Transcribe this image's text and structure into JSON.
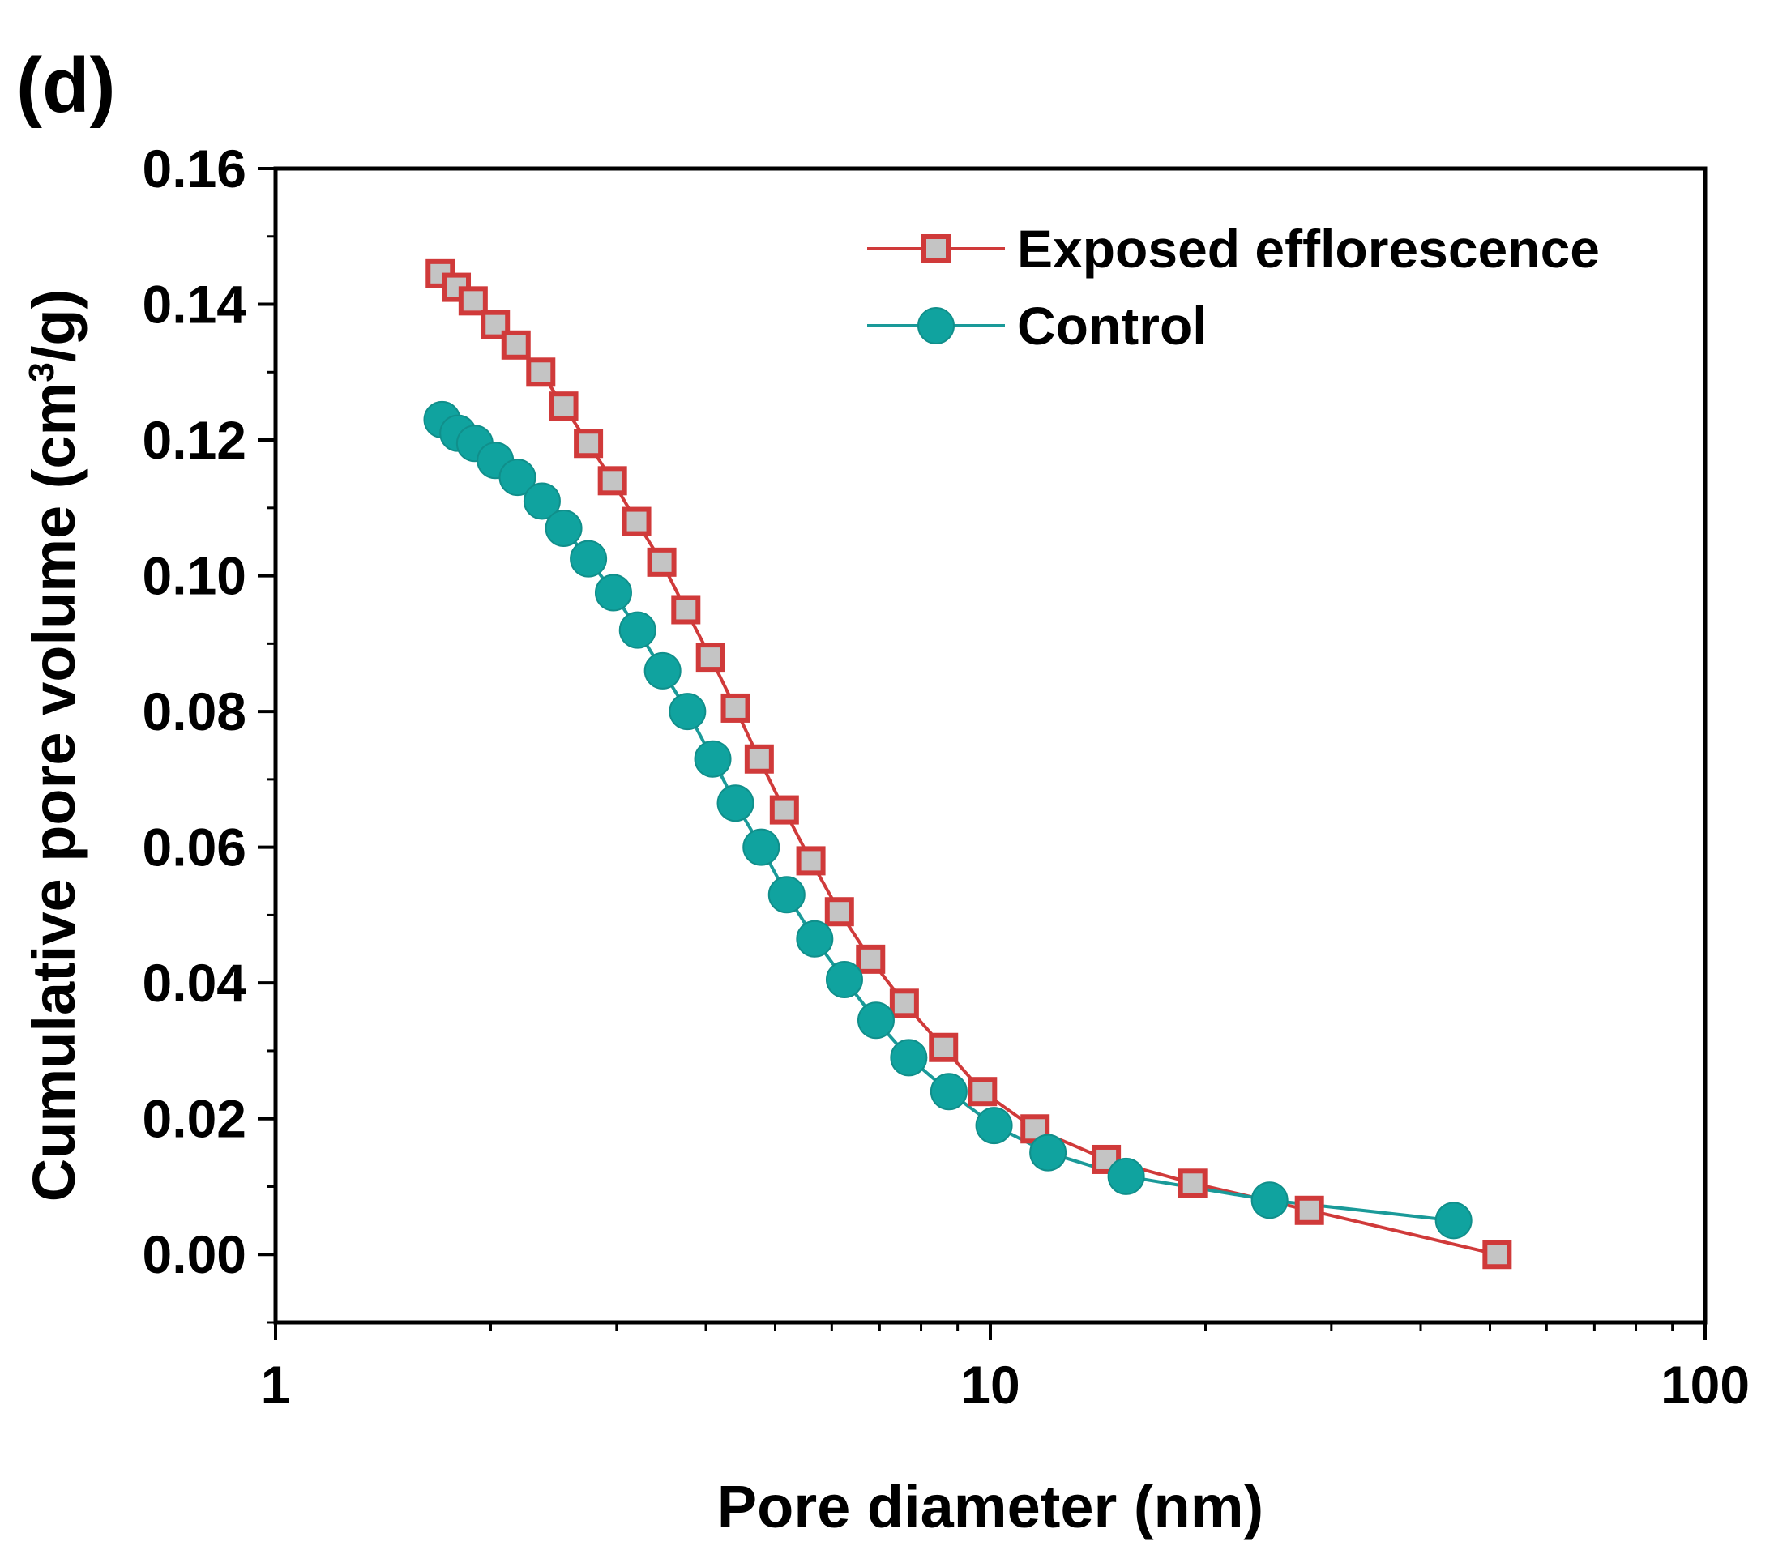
{
  "chart_data": {
    "type": "line",
    "panel_label": "(d)",
    "xlabel": "Pore diameter (nm)",
    "ylabel": "Cumulative pore volume (cm",
    "ylabel_sup": "3",
    "ylabel_end": "/g)",
    "xscale": "log",
    "xlim": [
      1,
      100
    ],
    "ylim": [
      -0.01,
      0.16
    ],
    "x_ticks": [
      {
        "value": 1,
        "label": "1"
      },
      {
        "value": 10,
        "label": "10"
      },
      {
        "value": 100,
        "label": "100"
      }
    ],
    "y_ticks": [
      {
        "value": 0.0,
        "label": "0.00"
      },
      {
        "value": 0.02,
        "label": "0.02"
      },
      {
        "value": 0.04,
        "label": "0.04"
      },
      {
        "value": 0.06,
        "label": "0.06"
      },
      {
        "value": 0.08,
        "label": "0.08"
      },
      {
        "value": 0.1,
        "label": "0.10"
      },
      {
        "value": 0.12,
        "label": "0.12"
      },
      {
        "value": 0.14,
        "label": "0.14"
      },
      {
        "value": 0.16,
        "label": "0.16"
      }
    ],
    "legend_position": "top-right",
    "series": [
      {
        "name": "Exposed efflorescence",
        "marker": "square",
        "line_color": "#d03a3a",
        "marker_fill": "#c4c4c4",
        "x": [
          1.7,
          1.79,
          1.89,
          2.03,
          2.17,
          2.35,
          2.53,
          2.74,
          2.96,
          3.2,
          3.47,
          3.75,
          4.06,
          4.4,
          4.75,
          5.15,
          5.61,
          6.15,
          6.8,
          7.58,
          8.6,
          9.75,
          11.55,
          14.53,
          19.19,
          27.95,
          51.17
        ],
        "y": [
          0.1445,
          0.1425,
          0.1405,
          0.137,
          0.134,
          0.13,
          0.125,
          0.1195,
          0.114,
          0.108,
          0.102,
          0.095,
          0.088,
          0.0805,
          0.073,
          0.0655,
          0.058,
          0.0505,
          0.0435,
          0.037,
          0.0305,
          0.024,
          0.0185,
          0.014,
          0.0105,
          0.0065,
          0.0
        ]
      },
      {
        "name": "Control",
        "marker": "circle",
        "line_color": "#1a9a99",
        "marker_fill": "#10a39f",
        "x": [
          1.71,
          1.8,
          1.9,
          2.03,
          2.18,
          2.36,
          2.53,
          2.74,
          2.97,
          3.21,
          3.48,
          3.77,
          4.09,
          4.4,
          4.78,
          5.19,
          5.68,
          6.25,
          6.92,
          7.69,
          8.75,
          10.12,
          12.04,
          15.49,
          24.59,
          44.48
        ],
        "y": [
          0.123,
          0.121,
          0.1195,
          0.117,
          0.1145,
          0.111,
          0.107,
          0.1025,
          0.0975,
          0.092,
          0.086,
          0.08,
          0.073,
          0.0665,
          0.06,
          0.053,
          0.0465,
          0.0405,
          0.0345,
          0.029,
          0.024,
          0.019,
          0.015,
          0.0115,
          0.008,
          0.005
        ]
      }
    ]
  }
}
